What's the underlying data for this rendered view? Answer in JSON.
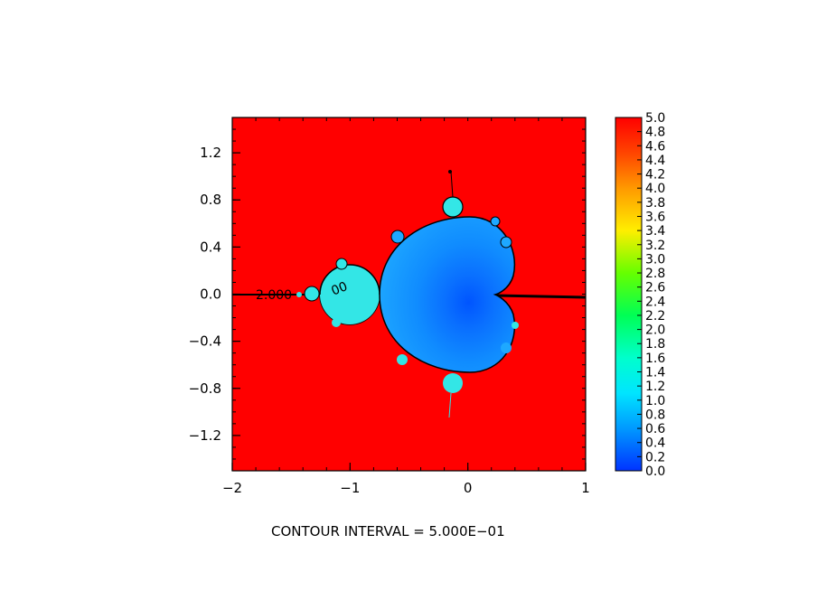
{
  "chart_data": {
    "type": "heatmap",
    "title": "",
    "xlabel": "",
    "ylabel": "",
    "xlim": [
      -2,
      1
    ],
    "ylim": [
      -1.5,
      1.5
    ],
    "x_ticks": [
      -2,
      -1,
      0,
      1
    ],
    "x_tick_labels": [
      "−2",
      "−1",
      "0",
      "1"
    ],
    "y_ticks": [
      1.2,
      0.8,
      0.4,
      0.0,
      -0.4,
      -0.8,
      -1.2
    ],
    "y_tick_labels": [
      "1.2",
      "0.8",
      "0.4",
      "0.0",
      "−0.4",
      "−0.8",
      "−1.2"
    ],
    "colorbar": {
      "range": [
        0.0,
        5.0
      ],
      "tick_values": [
        0.0,
        0.2,
        0.4,
        0.6,
        0.8,
        1.0,
        1.2,
        1.4,
        1.6,
        1.8,
        2.0,
        2.2,
        2.4,
        2.6,
        2.8,
        3.0,
        3.2,
        3.4,
        3.6,
        3.8,
        4.0,
        4.2,
        4.4,
        4.6,
        4.8,
        5.0
      ],
      "tick_labels": [
        "0.0",
        "0.2",
        "0.4",
        "0.6",
        "0.8",
        "1.0",
        "1.2",
        "1.4",
        "1.6",
        "1.8",
        "2.0",
        "2.2",
        "2.4",
        "2.6",
        "2.8",
        "3.0",
        "3.2",
        "3.4",
        "3.6",
        "3.8",
        "4.0",
        "4.2",
        "4.4",
        "4.6",
        "4.8",
        "5.0"
      ]
    },
    "contour_labels": [
      "2.000",
      "00"
    ],
    "footer": "CONTOUR INTERVAL = 5.000E−01",
    "colors": {
      "outside": "#ff0000",
      "set_interior_center": "#0055ff",
      "set_interior_edge": "#1aa3ff",
      "bulb": "#33e6e6",
      "contour": "#000000"
    }
  }
}
